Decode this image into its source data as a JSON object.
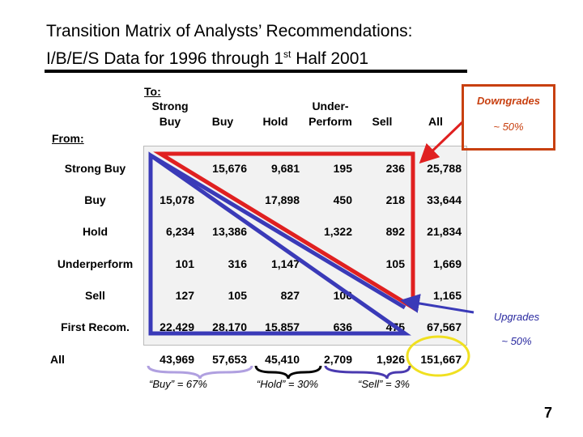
{
  "title": {
    "line1": "Transition Matrix of Analysts’ Recommendations:",
    "line2_a": "I/B/E/S Data for 1996 through 1",
    "line2_sup": "st",
    "line2_b": " Half 2001"
  },
  "headers": {
    "to": "To:",
    "from": "From:",
    "cols": [
      {
        "l1": "Strong",
        "l2": "Buy"
      },
      {
        "l1": "",
        "l2": "Buy"
      },
      {
        "l1": "",
        "l2": "Hold"
      },
      {
        "l1": "Under-",
        "l2": "Perform"
      },
      {
        "l1": "",
        "l2": "Sell"
      },
      {
        "l1": "",
        "l2": "All"
      }
    ]
  },
  "rows": [
    {
      "label": "Strong Buy",
      "cells": [
        "",
        "15,676",
        "9,681",
        "195",
        "236",
        "25,788"
      ]
    },
    {
      "label": "Buy",
      "cells": [
        "15,078",
        "",
        "17,898",
        "450",
        "218",
        "33,644"
      ]
    },
    {
      "label": "Hold",
      "cells": [
        "6,234",
        "13,386",
        "",
        "1,322",
        "892",
        "21,834"
      ]
    },
    {
      "label": "Underperform",
      "cells": [
        "101",
        "316",
        "1,147",
        "",
        "105",
        "1,669"
      ]
    },
    {
      "label": "Sell",
      "cells": [
        "127",
        "105",
        "827",
        "106",
        "",
        "1,165"
      ]
    },
    {
      "label": "First Recom.",
      "cells": [
        "22,429",
        "28,170",
        "15,857",
        "636",
        "475",
        "67,567"
      ]
    },
    {
      "label": "All",
      "cells": [
        "43,969",
        "57,653",
        "45,410",
        "2,709",
        "1,926",
        "151,667"
      ]
    }
  ],
  "callouts": {
    "downgrades": "Downgrades",
    "downgrades_pct": "~ 50%",
    "upgrades": "Upgrades",
    "upgrades_pct": "~ 50%"
  },
  "shares": {
    "buy": "“Buy” = 67%",
    "hold": "“Hold” = 30%",
    "sell": "“Sell” = 3%"
  },
  "page_number": "7",
  "colors": {
    "downgrade": "#e02020",
    "upgrade": "#3a3ab8",
    "circle": "#f0e020",
    "brace_buy": "#b0a0e0",
    "brace_hold": "#000000",
    "brace_sell": "#4a3ab0"
  }
}
